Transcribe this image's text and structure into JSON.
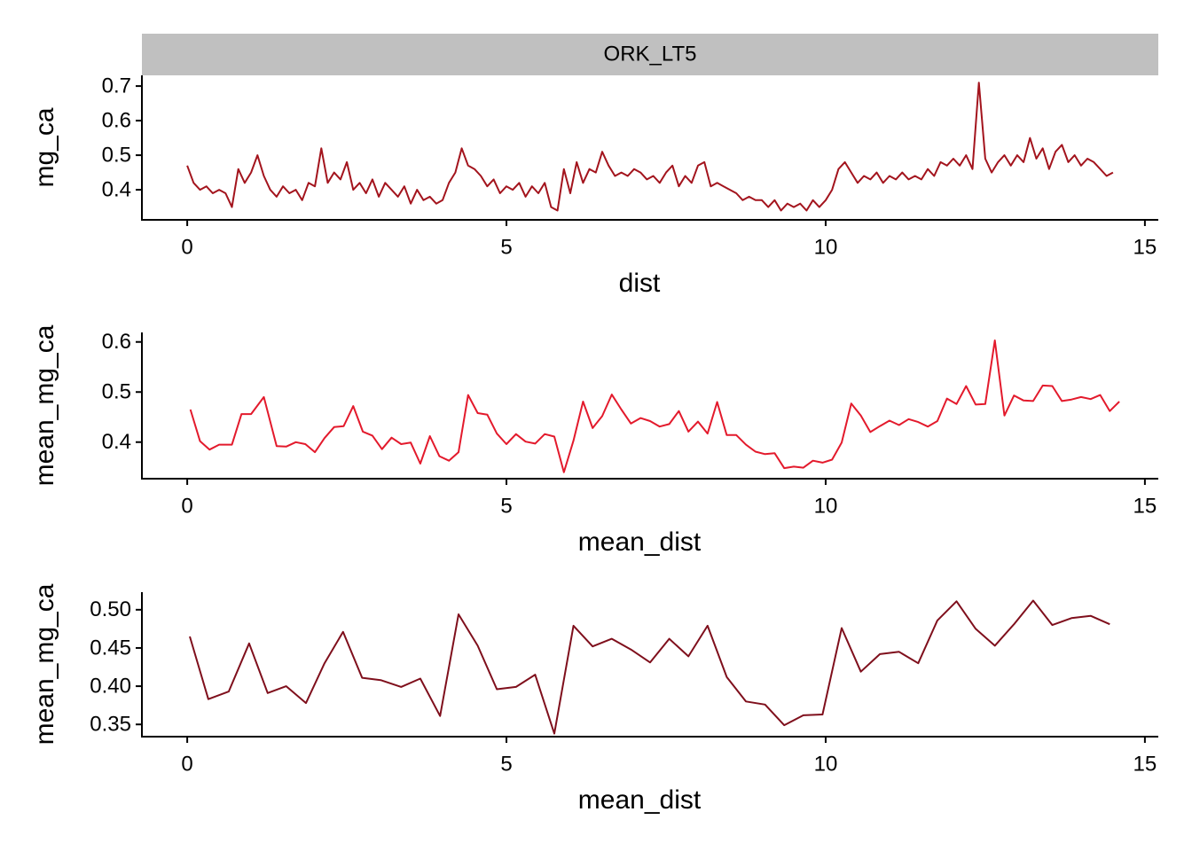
{
  "chart_data": [
    {
      "type": "line",
      "facet_label": "ORK_LT5",
      "x_label": "dist",
      "y_label": "mg_ca",
      "color": "#a3141d",
      "xlim": [
        -0.71,
        15.21
      ],
      "ylim": [
        0.313,
        0.731
      ],
      "xticks": [
        0,
        5,
        10,
        15
      ],
      "yticks": [
        0.4,
        0.5,
        0.6,
        0.7
      ],
      "x": [
        0.0,
        0.1,
        0.2,
        0.3,
        0.4,
        0.5,
        0.6,
        0.7,
        0.8,
        0.9,
        1.0,
        1.1,
        1.2,
        1.3,
        1.4,
        1.5,
        1.6,
        1.7,
        1.8,
        1.9,
        2.0,
        2.1,
        2.2,
        2.3,
        2.4,
        2.5,
        2.6,
        2.7,
        2.8,
        2.9,
        3.0,
        3.1,
        3.2,
        3.3,
        3.4,
        3.5,
        3.6,
        3.7,
        3.8,
        3.9,
        4.0,
        4.1,
        4.2,
        4.3,
        4.4,
        4.5,
        4.6,
        4.7,
        4.8,
        4.9,
        5.0,
        5.1,
        5.2,
        5.3,
        5.4,
        5.5,
        5.6,
        5.7,
        5.8,
        5.9,
        6.0,
        6.1,
        6.2,
        6.3,
        6.4,
        6.5,
        6.6,
        6.7,
        6.8,
        6.9,
        7.0,
        7.1,
        7.2,
        7.3,
        7.4,
        7.5,
        7.6,
        7.7,
        7.8,
        7.9,
        8.0,
        8.1,
        8.2,
        8.3,
        8.4,
        8.5,
        8.6,
        8.7,
        8.8,
        8.9,
        9.0,
        9.1,
        9.2,
        9.3,
        9.4,
        9.5,
        9.6,
        9.7,
        9.8,
        9.9,
        10.0,
        10.1,
        10.2,
        10.3,
        10.4,
        10.5,
        10.6,
        10.7,
        10.8,
        10.9,
        11.0,
        11.1,
        11.2,
        11.3,
        11.4,
        11.5,
        11.6,
        11.7,
        11.8,
        11.9,
        12.0,
        12.1,
        12.2,
        12.3,
        12.4,
        12.5,
        12.6,
        12.7,
        12.8,
        12.9,
        13.0,
        13.1,
        13.2,
        13.3,
        13.4,
        13.5,
        13.6,
        13.7,
        13.8,
        13.9,
        14.0,
        14.1,
        14.2,
        14.3,
        14.4,
        14.5
      ],
      "values": [
        0.47,
        0.42,
        0.4,
        0.41,
        0.39,
        0.4,
        0.39,
        0.35,
        0.46,
        0.42,
        0.45,
        0.5,
        0.44,
        0.4,
        0.38,
        0.41,
        0.39,
        0.4,
        0.37,
        0.42,
        0.41,
        0.52,
        0.42,
        0.45,
        0.43,
        0.48,
        0.4,
        0.42,
        0.39,
        0.43,
        0.38,
        0.42,
        0.4,
        0.38,
        0.41,
        0.36,
        0.4,
        0.37,
        0.38,
        0.36,
        0.37,
        0.42,
        0.45,
        0.52,
        0.47,
        0.46,
        0.44,
        0.41,
        0.43,
        0.39,
        0.41,
        0.4,
        0.42,
        0.38,
        0.41,
        0.39,
        0.42,
        0.35,
        0.34,
        0.46,
        0.39,
        0.48,
        0.42,
        0.46,
        0.45,
        0.51,
        0.47,
        0.44,
        0.45,
        0.44,
        0.46,
        0.45,
        0.43,
        0.44,
        0.42,
        0.45,
        0.47,
        0.41,
        0.44,
        0.42,
        0.47,
        0.48,
        0.41,
        0.42,
        0.41,
        0.4,
        0.39,
        0.37,
        0.38,
        0.37,
        0.37,
        0.35,
        0.37,
        0.34,
        0.36,
        0.35,
        0.36,
        0.34,
        0.37,
        0.35,
        0.37,
        0.4,
        0.46,
        0.48,
        0.45,
        0.42,
        0.44,
        0.43,
        0.45,
        0.42,
        0.44,
        0.43,
        0.45,
        0.43,
        0.44,
        0.43,
        0.46,
        0.44,
        0.48,
        0.47,
        0.49,
        0.47,
        0.5,
        0.46,
        0.71,
        0.49,
        0.45,
        0.48,
        0.5,
        0.47,
        0.5,
        0.48,
        0.55,
        0.49,
        0.52,
        0.46,
        0.51,
        0.53,
        0.48,
        0.5,
        0.47,
        0.49,
        0.48,
        0.46,
        0.44,
        0.45
      ]
    },
    {
      "type": "line",
      "x_label": "mean_dist",
      "y_label": "mean_mg_ca",
      "color": "#e31a2c",
      "xlim": [
        -0.71,
        15.21
      ],
      "ylim": [
        0.327,
        0.619
      ],
      "xticks": [
        0,
        5,
        10,
        15
      ],
      "yticks": [
        0.4,
        0.5,
        0.6
      ],
      "x": [
        0.05,
        0.2,
        0.35,
        0.5,
        0.7,
        0.85,
        1.0,
        1.1,
        1.2,
        1.4,
        1.55,
        1.7,
        1.85,
        2.0,
        2.15,
        2.3,
        2.45,
        2.6,
        2.75,
        2.9,
        3.05,
        3.2,
        3.35,
        3.5,
        3.65,
        3.8,
        3.95,
        4.1,
        4.25,
        4.4,
        4.55,
        4.7,
        4.85,
        5.0,
        5.15,
        5.3,
        5.45,
        5.6,
        5.75,
        5.9,
        6.05,
        6.2,
        6.35,
        6.5,
        6.65,
        6.8,
        6.95,
        7.1,
        7.25,
        7.4,
        7.55,
        7.7,
        7.85,
        8.0,
        8.15,
        8.3,
        8.45,
        8.6,
        8.75,
        8.9,
        9.05,
        9.2,
        9.35,
        9.5,
        9.65,
        9.8,
        9.95,
        10.1,
        10.25,
        10.4,
        10.55,
        10.7,
        10.85,
        11.0,
        11.15,
        11.3,
        11.45,
        11.6,
        11.75,
        11.9,
        12.05,
        12.2,
        12.35,
        12.5,
        12.65,
        12.8,
        12.95,
        13.1,
        13.25,
        13.4,
        13.55,
        13.7,
        13.85,
        14.0,
        14.15,
        14.3,
        14.45,
        14.6
      ],
      "values": [
        0.465,
        0.402,
        0.385,
        0.395,
        0.395,
        0.456,
        0.456,
        0.473,
        0.49,
        0.392,
        0.391,
        0.4,
        0.396,
        0.38,
        0.408,
        0.43,
        0.432,
        0.472,
        0.421,
        0.413,
        0.386,
        0.409,
        0.396,
        0.399,
        0.357,
        0.412,
        0.372,
        0.363,
        0.38,
        0.494,
        0.458,
        0.455,
        0.417,
        0.396,
        0.416,
        0.401,
        0.397,
        0.416,
        0.411,
        0.34,
        0.403,
        0.481,
        0.428,
        0.452,
        0.495,
        0.465,
        0.437,
        0.448,
        0.442,
        0.431,
        0.436,
        0.462,
        0.421,
        0.441,
        0.417,
        0.48,
        0.414,
        0.414,
        0.395,
        0.381,
        0.376,
        0.378,
        0.348,
        0.351,
        0.349,
        0.363,
        0.359,
        0.365,
        0.399,
        0.477,
        0.453,
        0.42,
        0.432,
        0.443,
        0.434,
        0.446,
        0.44,
        0.431,
        0.442,
        0.487,
        0.476,
        0.512,
        0.475,
        0.476,
        0.603,
        0.453,
        0.493,
        0.483,
        0.482,
        0.513,
        0.512,
        0.482,
        0.485,
        0.49,
        0.486,
        0.494,
        0.462,
        0.481
      ]
    },
    {
      "type": "line",
      "x_label": "mean_dist",
      "y_label": "mean_mg_ca",
      "color": "#7f0f1c",
      "xlim": [
        -0.71,
        15.21
      ],
      "ylim": [
        0.334,
        0.523
      ],
      "xticks": [
        0,
        5,
        10,
        15
      ],
      "yticks": [
        0.35,
        {
          "value": 0.4,
          "label": "0.40"
        },
        0.45,
        {
          "value": 0.5,
          "label": "0.50"
        }
      ],
      "x": [
        0.04,
        0.33,
        0.65,
        0.97,
        1.26,
        1.55,
        1.86,
        2.15,
        2.44,
        2.74,
        3.03,
        3.35,
        3.65,
        3.96,
        4.25,
        4.55,
        4.85,
        5.15,
        5.45,
        5.75,
        6.05,
        6.35,
        6.65,
        6.95,
        7.25,
        7.55,
        7.85,
        8.15,
        8.45,
        8.75,
        9.05,
        9.35,
        9.65,
        9.95,
        10.25,
        10.55,
        10.85,
        11.15,
        11.45,
        11.75,
        12.05,
        12.35,
        12.65,
        12.95,
        13.25,
        13.55,
        13.85,
        14.15,
        14.45
      ],
      "values": [
        0.465,
        0.383,
        0.393,
        0.456,
        0.391,
        0.4,
        0.378,
        0.43,
        0.471,
        0.411,
        0.408,
        0.399,
        0.41,
        0.361,
        0.494,
        0.453,
        0.396,
        0.399,
        0.415,
        0.338,
        0.479,
        0.452,
        0.462,
        0.448,
        0.431,
        0.462,
        0.439,
        0.479,
        0.412,
        0.38,
        0.376,
        0.349,
        0.362,
        0.363,
        0.476,
        0.419,
        0.442,
        0.445,
        0.43,
        0.486,
        0.511,
        0.475,
        0.453,
        0.481,
        0.512,
        0.48,
        0.489,
        0.492,
        0.481
      ]
    }
  ]
}
